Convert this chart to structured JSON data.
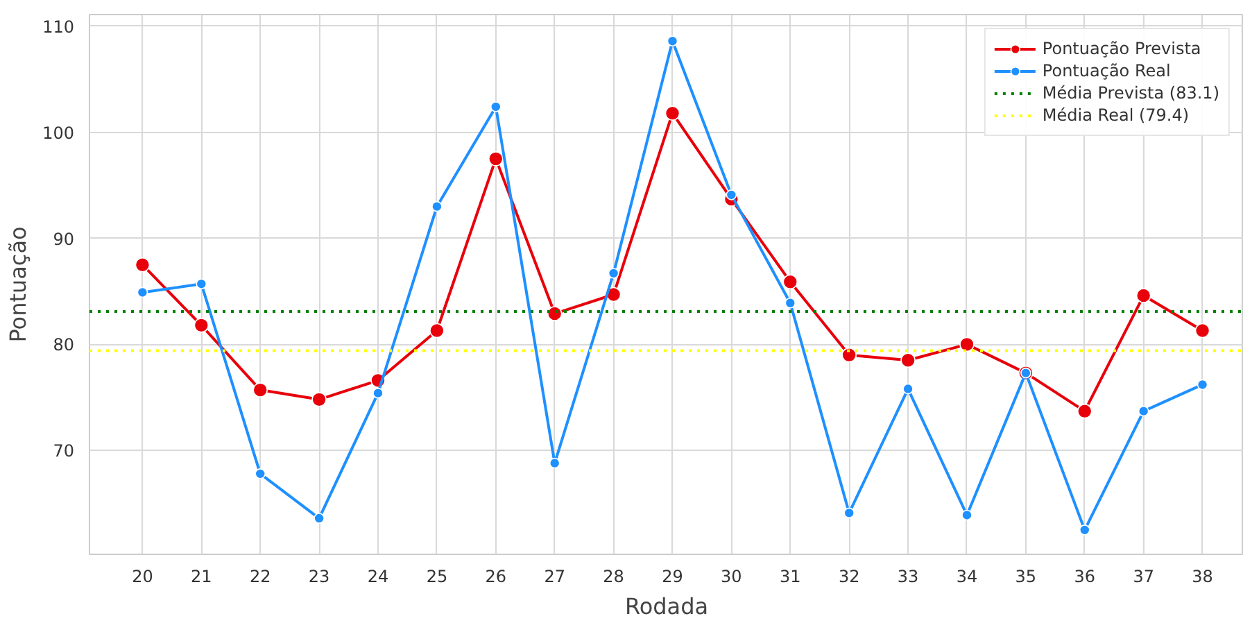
{
  "chart_data": {
    "type": "line",
    "xlabel": "Rodada",
    "ylabel": "Pontuação",
    "x": [
      20,
      21,
      22,
      23,
      24,
      25,
      26,
      27,
      28,
      29,
      30,
      31,
      32,
      33,
      34,
      35,
      36,
      37,
      38
    ],
    "series": [
      {
        "name": "Pontuação Prevista",
        "color": "#e8000b",
        "values": [
          87.5,
          81.8,
          75.7,
          74.8,
          76.6,
          81.3,
          97.5,
          82.9,
          84.7,
          101.8,
          93.7,
          85.9,
          79.0,
          78.5,
          80.0,
          77.3,
          73.7,
          84.6,
          81.3
        ]
      },
      {
        "name": "Pontuação Real",
        "color": "#1e90ff",
        "values": [
          84.9,
          85.7,
          67.8,
          63.6,
          75.4,
          93.0,
          102.4,
          68.8,
          86.7,
          108.6,
          94.1,
          83.9,
          64.1,
          75.8,
          63.9,
          77.3,
          62.5,
          73.7,
          76.2
        ]
      }
    ],
    "ref_lines": [
      {
        "axis": "y",
        "value": 83.1,
        "label": "Média Prevista (83.1)",
        "color": "#008000",
        "line_style": "dotted"
      },
      {
        "axis": "y",
        "value": 79.4,
        "label": "Média Real (79.4)",
        "color": "#ffff00",
        "line_style": "dotted"
      }
    ],
    "xlim": [
      19.1,
      38.7
    ],
    "ylim": [
      60.2,
      111.1
    ],
    "xticks": [
      20,
      21,
      22,
      23,
      24,
      25,
      26,
      27,
      28,
      29,
      30,
      31,
      32,
      33,
      34,
      35,
      36,
      37,
      38
    ],
    "yticks": [
      70,
      80,
      90,
      100,
      110
    ],
    "grid": true,
    "legend": "top right",
    "marker": "circle",
    "line_style": "solid"
  }
}
